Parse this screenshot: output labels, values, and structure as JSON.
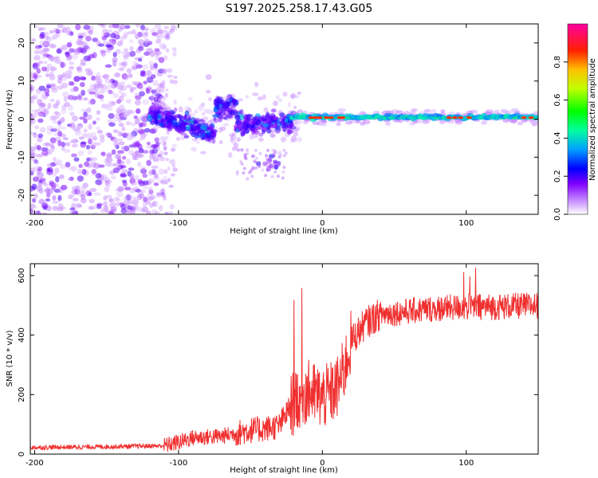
{
  "title": "S197.2025.258.17.43.G05",
  "chart_data": [
    {
      "type": "heatmap",
      "name": "spectrogram",
      "xlabel": "Height of straight line (km)",
      "ylabel": "Frequency (Hz)",
      "xlim": [
        -203,
        150
      ],
      "ylim": [
        -25,
        25
      ],
      "xticks": [
        -200,
        -100,
        0,
        100
      ],
      "yticks": [
        -20,
        -10,
        0,
        10,
        20
      ],
      "colorbar": {
        "label": "Normalized spectral amplitude",
        "range": [
          0,
          1
        ],
        "ticks": [
          0.0,
          0.2,
          0.4,
          0.6,
          0.8
        ],
        "colors": [
          "#ffffff",
          "#8000ff",
          "#0000ff",
          "#00c0ff",
          "#00ff40",
          "#ffff00",
          "#ff8000",
          "#ff0000",
          "#ff00a0"
        ]
      },
      "regions": [
        {
          "x_from": -203,
          "x_to": -110,
          "freq_center": 0,
          "freq_spread": 25,
          "amplitude": 0.15,
          "description": "noise"
        },
        {
          "x_from": -120,
          "x_to": -20,
          "freq_center": -1,
          "freq_spread": 6,
          "amplitude": 0.3
        },
        {
          "x_from": -20,
          "x_to": 150,
          "freq_center": 0.5,
          "freq_spread": 1.5,
          "amplitude": 0.5
        }
      ]
    },
    {
      "type": "line",
      "name": "snr",
      "xlabel": "Height of straight line (km)",
      "ylabel": "SNR (10 * v/v)",
      "xlim": [
        -203,
        150
      ],
      "ylim": [
        0,
        640
      ],
      "xticks": [
        -200,
        -100,
        0,
        100
      ],
      "yticks": [
        0,
        200,
        400,
        600
      ],
      "color": "#f03030",
      "trend": {
        "x": [
          -203,
          -150,
          -110,
          -100,
          -90,
          -70,
          -50,
          -40,
          -30,
          -22,
          -15,
          -10,
          -5,
          0,
          5,
          10,
          15,
          20,
          30,
          40,
          60,
          80,
          100,
          120,
          150
        ],
        "y": [
          22,
          25,
          28,
          40,
          55,
          60,
          80,
          85,
          95,
          160,
          200,
          210,
          200,
          190,
          200,
          220,
          280,
          380,
          440,
          470,
          480,
          490,
          495,
          495,
          500
        ]
      }
    }
  ]
}
